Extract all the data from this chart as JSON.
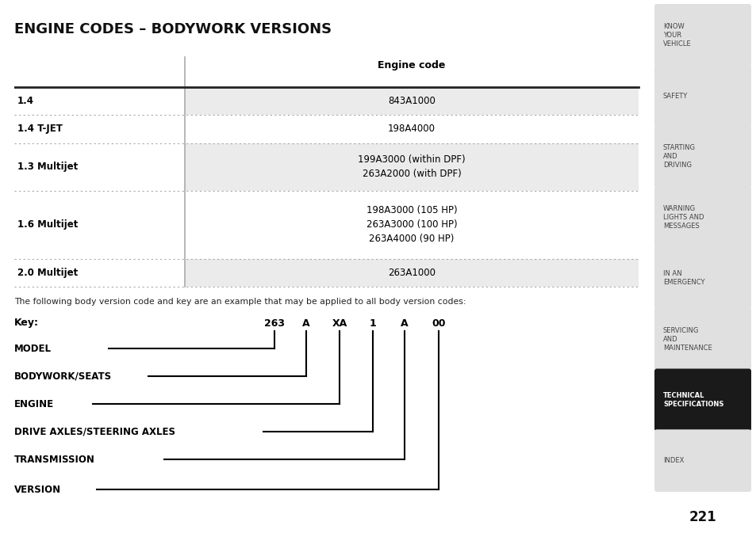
{
  "title": "ENGINE CODES – BODYWORK VERSIONS",
  "title_fontsize": 13,
  "table_header": "Engine code",
  "rows": [
    {
      "label": "1.4",
      "codes": "843A1000",
      "shaded": true
    },
    {
      "label": "1.4 T-JET",
      "codes": "198A4000",
      "shaded": false
    },
    {
      "label": "1.3 Multijet",
      "codes": "199A3000 (within DPF)\n263A2000 (with DPF)",
      "shaded": true
    },
    {
      "label": "1.6 Multijet",
      "codes": "198A3000 (105 HP)\n263A3000 (100 HP)\n263A4000 (90 HP)",
      "shaded": false
    },
    {
      "label": "2.0 Multijet",
      "codes": "263A1000",
      "shaded": true
    }
  ],
  "footnote": "The following body version code and key are an example that may be applied to all body version codes:",
  "key_label": "Key:",
  "key_parts": [
    "263",
    "A",
    "XA",
    "1",
    "A",
    "00"
  ],
  "key_labels_below": [
    {
      "label": "MODEL",
      "connects_to": 0
    },
    {
      "label": "BODYWORK/SEATS",
      "connects_to": 1
    },
    {
      "label": "ENGINE",
      "connects_to": 2
    },
    {
      "label": "DRIVE AXLES/STEERING AXLES",
      "connects_to": 3
    },
    {
      "label": "TRANSMISSION",
      "connects_to": 4
    },
    {
      "label": "VERSION",
      "connects_to": 5
    }
  ],
  "sidebar_items": [
    {
      "text": "KNOW\nYOUR\nVEHICLE",
      "active": false
    },
    {
      "text": "SAFETY",
      "active": false
    },
    {
      "text": "STARTING\nAND\nDRIVING",
      "active": false
    },
    {
      "text": "WARNING\nLIGHTS AND\nMESSAGES",
      "active": false
    },
    {
      "text": "IN AN\nEMERGENCY",
      "active": false
    },
    {
      "text": "SERVICING\nAND\nMAINTENANCE",
      "active": false
    },
    {
      "text": "TECHNICAL\nSPECIFICATIONS",
      "active": true
    },
    {
      "text": "INDEX",
      "active": false
    }
  ],
  "page_number": "221",
  "bg_color": "#ffffff",
  "sidebar_bg": "#e0e0e0",
  "sidebar_active_bg": "#1a1a1a",
  "sidebar_active_fg": "#ffffff",
  "sidebar_inactive_fg": "#444444",
  "table_shaded_color": "#ebebeb",
  "table_dot_color": "#aaaaaa",
  "header_line_color": "#222222",
  "divider_color": "#aaaaaa",
  "line_color": "#000000"
}
